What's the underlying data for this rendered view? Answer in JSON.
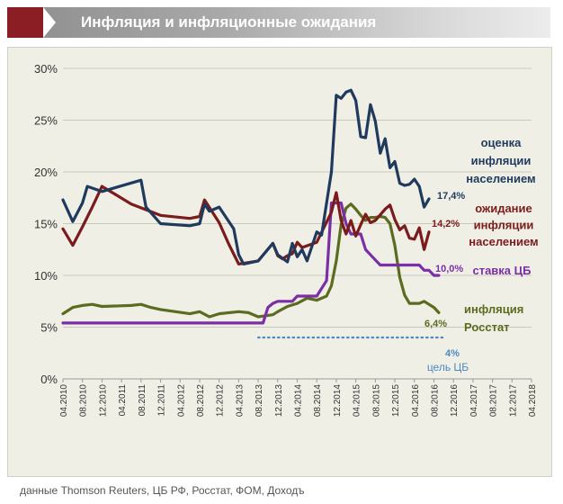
{
  "header": {
    "title": "Инфляция и инфляционные ожидания"
  },
  "source_note": "данные Thomson Reuters, ЦБ РФ, Росстат, ФОМ, Доходъ",
  "colors": {
    "header_accent": "#8b1e24",
    "plot_background": "#f0efe6",
    "estimate": "#1f3a5c",
    "expectation": "#7a1c1c",
    "key_rate": "#7b2fa6",
    "inflation": "#5b6b1f",
    "target": "#4f87c5"
  },
  "chart_data": {
    "type": "line",
    "title": "",
    "xlabel": "",
    "ylabel": "",
    "ylim": [
      0,
      30
    ],
    "y_ticks": [
      "0%",
      "5%",
      "10%",
      "15%",
      "20%",
      "25%",
      "30%"
    ],
    "x_ticks": [
      "04.2010",
      "08.2010",
      "12.2010",
      "04.2011",
      "08.2011",
      "12.2011",
      "04.2012",
      "08.2012",
      "12.2012",
      "04.2013",
      "08.2013",
      "12.2013",
      "04.2014",
      "08.2014",
      "12.2014",
      "04.2015",
      "08.2015",
      "12.2015",
      "04.2016",
      "08.2016",
      "12.2016",
      "04.2017",
      "08.2017",
      "12.2017",
      "04.2018"
    ],
    "grid": "horizontal",
    "series": [
      {
        "key": "estimate",
        "name": "оценка инфляции населением",
        "label_lines": [
          "оценка",
          "инфляции",
          "населением"
        ],
        "end_label": "17,4%",
        "points": [
          [
            "04.2010",
            17.3
          ],
          [
            "06.2010",
            15.2
          ],
          [
            "08.2010",
            17.0
          ],
          [
            "09.2010",
            18.6
          ],
          [
            "12.2010",
            18.1
          ],
          [
            "08.2011",
            19.2
          ],
          [
            "09.2011",
            16.6
          ],
          [
            "12.2011",
            15.0
          ],
          [
            "06.2012",
            14.8
          ],
          [
            "08.2012",
            15.0
          ],
          [
            "09.2012",
            16.9
          ],
          [
            "10.2012",
            16.2
          ],
          [
            "12.2012",
            16.6
          ],
          [
            "03.2013",
            14.5
          ],
          [
            "04.2013",
            12.0
          ],
          [
            "05.2013",
            11.1
          ],
          [
            "08.2013",
            11.4
          ],
          [
            "11.2013",
            13.1
          ],
          [
            "12.2013",
            12.0
          ],
          [
            "02.2014",
            11.3
          ],
          [
            "03.2014",
            13.1
          ],
          [
            "04.2014",
            11.8
          ],
          [
            "05.2014",
            12.5
          ],
          [
            "06.2014",
            11.4
          ],
          [
            "08.2014",
            14.2
          ],
          [
            "09.2014",
            13.9
          ],
          [
            "11.2014",
            20.0
          ],
          [
            "12.2014",
            27.4
          ],
          [
            "01.2015",
            27.1
          ],
          [
            "02.2015",
            27.7
          ],
          [
            "03.2015",
            27.9
          ],
          [
            "04.2015",
            26.9
          ],
          [
            "05.2015",
            23.4
          ],
          [
            "06.2015",
            23.3
          ],
          [
            "07.2015",
            26.5
          ],
          [
            "08.2015",
            24.9
          ],
          [
            "09.2015",
            21.8
          ],
          [
            "10.2015",
            23.2
          ],
          [
            "11.2015",
            20.4
          ],
          [
            "12.2015",
            21.0
          ],
          [
            "01.2016",
            18.9
          ],
          [
            "02.2016",
            18.7
          ],
          [
            "03.2016",
            18.8
          ],
          [
            "04.2016",
            19.3
          ],
          [
            "05.2016",
            18.6
          ],
          [
            "06.2016",
            16.6
          ],
          [
            "07.2016",
            17.4
          ]
        ]
      },
      {
        "key": "expectation",
        "name": "ожидание инфляции населением",
        "label_lines": [
          "ожидание",
          "инфляции",
          "населением"
        ],
        "end_label": "14,2%",
        "points": [
          [
            "04.2010",
            14.5
          ],
          [
            "06.2010",
            12.9
          ],
          [
            "08.2010",
            14.7
          ],
          [
            "10.2010",
            16.6
          ],
          [
            "12.2010",
            18.6
          ],
          [
            "06.2011",
            16.9
          ],
          [
            "12.2011",
            15.8
          ],
          [
            "06.2012",
            15.5
          ],
          [
            "08.2012",
            15.7
          ],
          [
            "09.2012",
            17.3
          ],
          [
            "12.2012",
            15.1
          ],
          [
            "02.2013",
            13.0
          ],
          [
            "04.2013",
            11.1
          ],
          [
            "08.2013",
            11.4
          ],
          [
            "11.2013",
            13.1
          ],
          [
            "12.2013",
            11.9
          ],
          [
            "01.2014",
            11.6
          ],
          [
            "02.2014",
            11.9
          ],
          [
            "03.2014",
            12.1
          ],
          [
            "04.2014",
            13.2
          ],
          [
            "05.2014",
            12.7
          ],
          [
            "08.2014",
            13.2
          ],
          [
            "11.2014",
            16.1
          ],
          [
            "12.2014",
            18.0
          ],
          [
            "01.2015",
            15.3
          ],
          [
            "02.2015",
            14.0
          ],
          [
            "03.2015",
            15.3
          ],
          [
            "04.2015",
            13.8
          ],
          [
            "05.2015",
            14.9
          ],
          [
            "06.2015",
            15.9
          ],
          [
            "07.2015",
            15.1
          ],
          [
            "08.2015",
            15.3
          ],
          [
            "10.2015",
            16.4
          ],
          [
            "11.2015",
            16.8
          ],
          [
            "12.2015",
            15.4
          ],
          [
            "01.2016",
            14.4
          ],
          [
            "02.2016",
            14.8
          ],
          [
            "03.2016",
            13.6
          ],
          [
            "04.2016",
            13.5
          ],
          [
            "05.2016",
            14.6
          ],
          [
            "06.2016",
            12.5
          ],
          [
            "07.2016",
            14.2
          ]
        ]
      },
      {
        "key": "key_rate",
        "name": "ставка ЦБ",
        "label_lines": [
          "ставка ЦБ"
        ],
        "end_label": "10,0%",
        "points": [
          [
            "04.2010",
            5.4
          ],
          [
            "09.2013",
            5.4
          ],
          [
            "10.2013",
            6.9
          ],
          [
            "11.2013",
            7.3
          ],
          [
            "12.2013",
            7.5
          ],
          [
            "03.2014",
            7.5
          ],
          [
            "04.2014",
            8.0
          ],
          [
            "08.2014",
            8.0
          ],
          [
            "10.2014",
            9.5
          ],
          [
            "11.2014",
            17.0
          ],
          [
            "01.2015",
            17.0
          ],
          [
            "02.2015",
            15.0
          ],
          [
            "03.2015",
            14.0
          ],
          [
            "05.2015",
            14.0
          ],
          [
            "06.2015",
            12.5
          ],
          [
            "08.2015",
            11.5
          ],
          [
            "09.2015",
            11.0
          ],
          [
            "03.2016",
            11.0
          ],
          [
            "05.2016",
            11.0
          ],
          [
            "06.2016",
            10.5
          ],
          [
            "07.2016",
            10.5
          ],
          [
            "08.2016",
            10.0
          ],
          [
            "09.2016",
            10.0
          ]
        ]
      },
      {
        "key": "inflation",
        "name": "инфляция Росстат",
        "label_lines": [
          "инфляция",
          "Росстат"
        ],
        "end_label": "6,4%",
        "points": [
          [
            "04.2010",
            6.3
          ],
          [
            "06.2010",
            6.9
          ],
          [
            "08.2010",
            7.1
          ],
          [
            "10.2010",
            7.2
          ],
          [
            "12.2010",
            7.0
          ],
          [
            "06.2011",
            7.1
          ],
          [
            "08.2011",
            7.2
          ],
          [
            "10.2011",
            6.9
          ],
          [
            "12.2011",
            6.7
          ],
          [
            "06.2012",
            6.3
          ],
          [
            "08.2012",
            6.5
          ],
          [
            "10.2012",
            6.0
          ],
          [
            "12.2012",
            6.3
          ],
          [
            "04.2013",
            6.5
          ],
          [
            "06.2013",
            6.4
          ],
          [
            "08.2013",
            6.0
          ],
          [
            "11.2013",
            6.2
          ],
          [
            "12.2013",
            6.5
          ],
          [
            "02.2014",
            7.0
          ],
          [
            "04.2014",
            7.3
          ],
          [
            "06.2014",
            7.8
          ],
          [
            "08.2014",
            7.6
          ],
          [
            "10.2014",
            8.0
          ],
          [
            "11.2014",
            9.0
          ],
          [
            "12.2014",
            11.4
          ],
          [
            "01.2015",
            14.9
          ],
          [
            "02.2015",
            16.5
          ],
          [
            "03.2015",
            16.9
          ],
          [
            "04.2015",
            16.4
          ],
          [
            "05.2015",
            15.8
          ],
          [
            "06.2015",
            15.3
          ],
          [
            "07.2015",
            15.6
          ],
          [
            "08.2015",
            15.6
          ],
          [
            "09.2015",
            15.7
          ],
          [
            "10.2015",
            15.6
          ],
          [
            "11.2015",
            15.0
          ],
          [
            "12.2015",
            12.9
          ],
          [
            "01.2016",
            9.8
          ],
          [
            "02.2016",
            8.1
          ],
          [
            "03.2016",
            7.3
          ],
          [
            "05.2016",
            7.3
          ],
          [
            "06.2016",
            7.5
          ],
          [
            "07.2016",
            7.2
          ],
          [
            "08.2016",
            6.9
          ],
          [
            "09.2016",
            6.4
          ]
        ]
      }
    ],
    "target": {
      "label_value": "4%",
      "label_text": "цель ЦБ",
      "value": 4,
      "from": "08.2013",
      "to": "10.2016"
    }
  }
}
